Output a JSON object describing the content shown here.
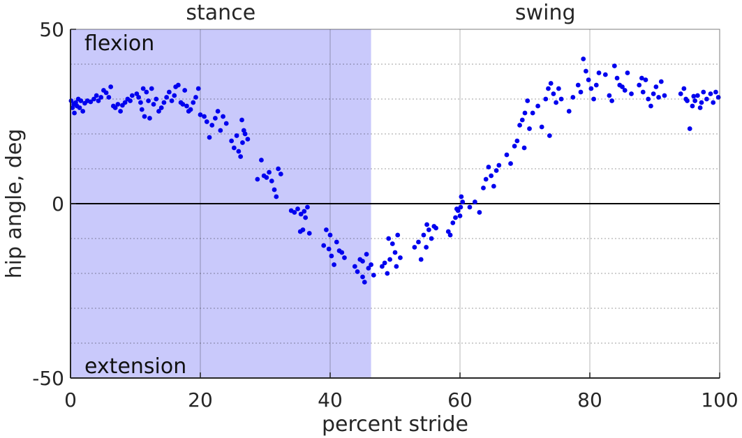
{
  "chart_data": {
    "type": "scatter",
    "xlabel": "percent stride",
    "ylabel": "hip angle, deg",
    "xlim": [
      0,
      100
    ],
    "ylim": [
      -50,
      50
    ],
    "x_ticks": [
      0,
      20,
      40,
      60,
      80,
      100
    ],
    "y_ticks": [
      -50,
      0,
      50
    ],
    "grid": "vertical solid at x ticks, horizontal dotted every 10 deg",
    "zero_line": true,
    "marker_color": "#0000ee",
    "stance_shade_color": "#c9c9fb",
    "phases": [
      {
        "label": "stance",
        "x_start": 0,
        "x_end": 46.3
      },
      {
        "label": "swing",
        "x_start": 46.3,
        "x_end": 100
      }
    ],
    "annotations": [
      {
        "text": "flexion",
        "position": "top-left"
      },
      {
        "text": "extension",
        "position": "bottom-left"
      }
    ],
    "points": [
      [
        0.1,
        29.5
      ],
      [
        0.3,
        27.5
      ],
      [
        0.5,
        28.5
      ],
      [
        0.6,
        26.0
      ],
      [
        0.8,
        29.0
      ],
      [
        1.0,
        28.0
      ],
      [
        1.2,
        30.0
      ],
      [
        1.4,
        27.5
      ],
      [
        1.6,
        29.5
      ],
      [
        1.9,
        26.5
      ],
      [
        2.2,
        28.8
      ],
      [
        2.6,
        29.5
      ],
      [
        3.1,
        29.2
      ],
      [
        3.6,
        30.0
      ],
      [
        4.0,
        31.0
      ],
      [
        4.3,
        29.5
      ],
      [
        4.7,
        30.5
      ],
      [
        5.1,
        32.5
      ],
      [
        5.5,
        31.8
      ],
      [
        5.9,
        30.5
      ],
      [
        6.2,
        33.5
      ],
      [
        6.6,
        28.0
      ],
      [
        6.9,
        27.5
      ],
      [
        7.3,
        28.5
      ],
      [
        7.7,
        26.5
      ],
      [
        8.0,
        28.2
      ],
      [
        8.4,
        29.0
      ],
      [
        8.8,
        30.0
      ],
      [
        9.2,
        29.5
      ],
      [
        9.5,
        31.0
      ],
      [
        10.2,
        31.5
      ],
      [
        10.5,
        30.5
      ],
      [
        10.8,
        29.0
      ],
      [
        11.0,
        27.0
      ],
      [
        11.2,
        33.0
      ],
      [
        11.4,
        25.0
      ],
      [
        11.7,
        32.0
      ],
      [
        12.0,
        29.5
      ],
      [
        12.2,
        24.5
      ],
      [
        12.5,
        33.0
      ],
      [
        12.8,
        28.5
      ],
      [
        13.2,
        30.0
      ],
      [
        13.6,
        26.5
      ],
      [
        14.0,
        27.5
      ],
      [
        14.4,
        29.0
      ],
      [
        14.8,
        30.5
      ],
      [
        15.2,
        32.0
      ],
      [
        15.6,
        29.5
      ],
      [
        16.0,
        31.0
      ],
      [
        16.2,
        33.5
      ],
      [
        16.6,
        34.0
      ],
      [
        17.0,
        29.0
      ],
      [
        17.3,
        28.5
      ],
      [
        17.6,
        32.5
      ],
      [
        17.9,
        28.0
      ],
      [
        18.2,
        26.5
      ],
      [
        18.5,
        27.0
      ],
      [
        18.9,
        29.0
      ],
      [
        19.3,
        30.5
      ],
      [
        19.7,
        33.0
      ],
      [
        20.0,
        25.5
      ],
      [
        20.6,
        25.0
      ],
      [
        21.0,
        23.5
      ],
      [
        21.4,
        19.0
      ],
      [
        21.8,
        22.5
      ],
      [
        22.3,
        24.5
      ],
      [
        22.7,
        26.5
      ],
      [
        23.1,
        21.0
      ],
      [
        23.5,
        25.0
      ],
      [
        24.0,
        23.0
      ],
      [
        24.8,
        18.0
      ],
      [
        25.2,
        16.0
      ],
      [
        25.6,
        19.5
      ],
      [
        25.9,
        15.0
      ],
      [
        26.2,
        13.5
      ],
      [
        26.5,
        17.5
      ],
      [
        26.9,
        20.0
      ],
      [
        27.3,
        18.5
      ],
      [
        26.4,
        24.0
      ],
      [
        26.7,
        21.0
      ],
      [
        28.8,
        7.0
      ],
      [
        29.4,
        12.5
      ],
      [
        29.8,
        8.0
      ],
      [
        30.2,
        7.5
      ],
      [
        30.6,
        9.0
      ],
      [
        31.0,
        6.5
      ],
      [
        31.4,
        4.0
      ],
      [
        31.7,
        2.0
      ],
      [
        32.0,
        10.0
      ],
      [
        32.4,
        8.5
      ],
      [
        34.0,
        -2.0
      ],
      [
        34.5,
        -2.5
      ],
      [
        35.0,
        -1.5
      ],
      [
        35.4,
        -8.0
      ],
      [
        35.8,
        -7.5
      ],
      [
        36.2,
        -4.0
      ],
      [
        36.5,
        -1.0
      ],
      [
        36.8,
        -8.5
      ],
      [
        35.5,
        -3.0
      ],
      [
        36.0,
        -2.2
      ],
      [
        39.0,
        -12.0
      ],
      [
        39.4,
        -7.5
      ],
      [
        39.8,
        -13.0
      ],
      [
        40.2,
        -15.0
      ],
      [
        40.6,
        -17.5
      ],
      [
        41.0,
        -11.0
      ],
      [
        41.4,
        -13.5
      ],
      [
        41.8,
        -14.0
      ],
      [
        42.2,
        -15.5
      ],
      [
        40.0,
        -9.0
      ],
      [
        43.8,
        -18.0
      ],
      [
        44.2,
        -19.5
      ],
      [
        44.6,
        -16.0
      ],
      [
        45.0,
        -21.0
      ],
      [
        45.3,
        -22.5
      ],
      [
        45.6,
        -14.5
      ],
      [
        45.9,
        -18.5
      ],
      [
        46.3,
        -17.5
      ],
      [
        46.7,
        -20.5
      ],
      [
        45.0,
        -16.5
      ],
      [
        48.0,
        -18.0
      ],
      [
        48.4,
        -17.0
      ],
      [
        48.8,
        -20.0
      ],
      [
        49.2,
        -16.0
      ],
      [
        49.6,
        -11.5
      ],
      [
        50.0,
        -14.0
      ],
      [
        50.4,
        -9.0
      ],
      [
        50.8,
        -15.5
      ],
      [
        49.0,
        -10.0
      ],
      [
        50.2,
        -18.0
      ],
      [
        53.0,
        -12.5
      ],
      [
        53.6,
        -11.0
      ],
      [
        54.0,
        -16.0
      ],
      [
        54.4,
        -9.0
      ],
      [
        54.8,
        -12.5
      ],
      [
        55.2,
        -7.5
      ],
      [
        55.6,
        -10.0
      ],
      [
        56.0,
        -6.5
      ],
      [
        56.3,
        -7.0
      ],
      [
        54.9,
        -6.0
      ],
      [
        58.5,
        -9.0
      ],
      [
        58.9,
        -5.5
      ],
      [
        59.3,
        -4.0
      ],
      [
        59.7,
        -2.0
      ],
      [
        60.1,
        -1.0
      ],
      [
        60.4,
        0.5
      ],
      [
        59.5,
        -1.5
      ],
      [
        60.0,
        -3.5
      ],
      [
        60.2,
        2.0
      ],
      [
        58.2,
        -8.0
      ],
      [
        61.5,
        -1.0
      ],
      [
        62.3,
        0.5
      ],
      [
        63.0,
        -2.5
      ],
      [
        63.6,
        4.5
      ],
      [
        64.0,
        7.0
      ],
      [
        64.4,
        10.5
      ],
      [
        64.8,
        8.0
      ],
      [
        65.2,
        5.0
      ],
      [
        65.6,
        9.5
      ],
      [
        66.0,
        11.0
      ],
      [
        67.2,
        14.0
      ],
      [
        67.8,
        11.5
      ],
      [
        68.4,
        16.5
      ],
      [
        68.8,
        18.0
      ],
      [
        69.2,
        22.5
      ],
      [
        69.6,
        24.0
      ],
      [
        70.0,
        26.0
      ],
      [
        70.4,
        29.5
      ],
      [
        70.7,
        21.5
      ],
      [
        69.9,
        16.0
      ],
      [
        72.0,
        28.0
      ],
      [
        72.6,
        22.0
      ],
      [
        73.2,
        30.0
      ],
      [
        73.6,
        33.0
      ],
      [
        74.0,
        34.5
      ],
      [
        74.4,
        31.5
      ],
      [
        74.8,
        29.0
      ],
      [
        75.2,
        33.0
      ],
      [
        73.8,
        19.5
      ],
      [
        75.6,
        30.0
      ],
      [
        76.8,
        26.5
      ],
      [
        77.4,
        30.5
      ],
      [
        78.6,
        32.0
      ],
      [
        79.0,
        41.5
      ],
      [
        79.4,
        38.0
      ],
      [
        79.8,
        35.5
      ],
      [
        80.2,
        33.0
      ],
      [
        80.6,
        30.0
      ],
      [
        81.0,
        34.0
      ],
      [
        81.4,
        37.5
      ],
      [
        82.4,
        37.0
      ],
      [
        83.0,
        31.0
      ],
      [
        83.4,
        29.5
      ],
      [
        83.8,
        39.5
      ],
      [
        84.2,
        36.0
      ],
      [
        84.6,
        34.0
      ],
      [
        85.0,
        33.5
      ],
      [
        85.4,
        32.5
      ],
      [
        85.8,
        37.5
      ],
      [
        86.4,
        31.5
      ],
      [
        87.6,
        34.0
      ],
      [
        88.2,
        32.0
      ],
      [
        88.6,
        35.5
      ],
      [
        89.0,
        30.0
      ],
      [
        89.4,
        28.0
      ],
      [
        89.8,
        31.5
      ],
      [
        90.2,
        33.5
      ],
      [
        90.6,
        30.5
      ],
      [
        91.0,
        35.0
      ],
      [
        91.5,
        31.0
      ],
      [
        94.0,
        31.5
      ],
      [
        94.5,
        33.0
      ],
      [
        95.0,
        29.5
      ],
      [
        95.4,
        21.5
      ],
      [
        95.8,
        28.0
      ],
      [
        96.2,
        29.5
      ],
      [
        96.6,
        31.0
      ],
      [
        97.0,
        27.5
      ],
      [
        97.5,
        32.0
      ],
      [
        98.0,
        30.0
      ],
      [
        98.6,
        31.5
      ],
      [
        99.0,
        29.0
      ],
      [
        99.4,
        32.0
      ],
      [
        99.8,
        30.5
      ],
      [
        97.2,
        29.0
      ],
      [
        94.8,
        30.0
      ],
      [
        96.0,
        30.8
      ],
      [
        88.0,
        36.0
      ],
      [
        78.2,
        34.0
      ],
      [
        71.2,
        26.0
      ]
    ]
  }
}
